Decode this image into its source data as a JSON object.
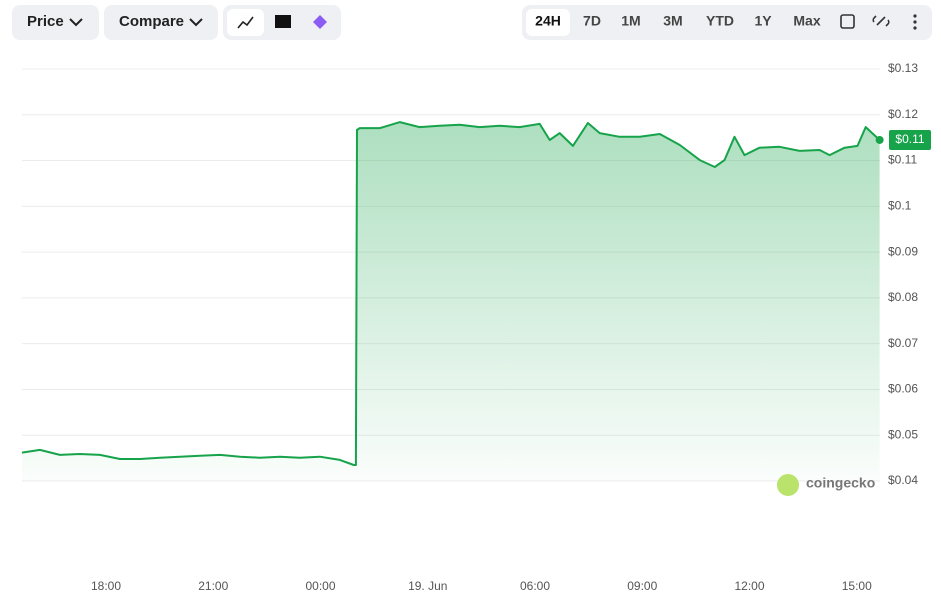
{
  "toolbar": {
    "price": "Price",
    "compare": "Compare",
    "ranges": [
      "24H",
      "7D",
      "1M",
      "3M",
      "YTD",
      "1Y",
      "Max"
    ],
    "active_range": 0
  },
  "chart_data": {
    "type": "line",
    "color": "#16a34a",
    "grid": true,
    "watermark": "coingecko",
    "price_tag": "$0.11",
    "x": [
      15.65,
      16.15,
      16.71,
      17.27,
      17.83,
      18.39,
      18.95,
      19.51,
      20.07,
      20.63,
      21.19,
      21.75,
      22.3,
      22.86,
      23.42,
      23.98,
      24.54,
      24.93,
      24.99,
      25.02,
      25.1,
      25.66,
      26.22,
      26.77,
      27.33,
      27.89,
      28.45,
      29.01,
      29.57,
      30.13,
      30.41,
      30.69,
      31.06,
      31.48,
      31.81,
      32.37,
      32.93,
      33.49,
      34.05,
      34.61,
      35.03,
      35.3,
      35.58,
      35.86,
      36.28,
      36.84,
      37.4,
      37.96,
      38.24,
      38.66,
      39.02,
      39.25,
      39.64
    ],
    "values": [
      0.0462,
      0.0468,
      0.0457,
      0.0459,
      0.0457,
      0.0448,
      0.0448,
      0.0451,
      0.0453,
      0.0455,
      0.0457,
      0.0453,
      0.0451,
      0.0453,
      0.0451,
      0.0453,
      0.0446,
      0.0435,
      0.0435,
      0.1167,
      0.1171,
      0.1171,
      0.1184,
      0.1173,
      0.1176,
      0.1178,
      0.1173,
      0.1176,
      0.1173,
      0.118,
      0.1145,
      0.116,
      0.1132,
      0.1182,
      0.116,
      0.1152,
      0.1152,
      0.1158,
      0.1134,
      0.1101,
      0.1086,
      0.1101,
      0.1152,
      0.1112,
      0.1128,
      0.113,
      0.1121,
      0.1123,
      0.1112,
      0.1128,
      0.1132,
      0.1173,
      0.1145
    ],
    "xlim": [
      15.65,
      39.65
    ],
    "xticks": [
      {
        "value": 18,
        "label": "18:00"
      },
      {
        "value": 21,
        "label": "21:00"
      },
      {
        "value": 24,
        "label": "00:00"
      },
      {
        "value": 27,
        "label": "19. Jun"
      },
      {
        "value": 30,
        "label": "06:00"
      },
      {
        "value": 33,
        "label": "09:00"
      },
      {
        "value": 36,
        "label": "12:00"
      },
      {
        "value": 39,
        "label": "15:00"
      }
    ],
    "ylim": [
      0.04,
      0.13
    ],
    "yticks": [
      {
        "value": 0.04,
        "label": "$0.04"
      },
      {
        "value": 0.05,
        "label": "$0.05"
      },
      {
        "value": 0.06,
        "label": "$0.06"
      },
      {
        "value": 0.07,
        "label": "$0.07"
      },
      {
        "value": 0.08,
        "label": "$0.08"
      },
      {
        "value": 0.09,
        "label": "$0.09"
      },
      {
        "value": 0.1,
        "label": "$0.1"
      },
      {
        "value": 0.11,
        "label": "$0.11"
      },
      {
        "value": 0.12,
        "label": "$0.12"
      },
      {
        "value": 0.13,
        "label": "$0.13"
      }
    ]
  }
}
